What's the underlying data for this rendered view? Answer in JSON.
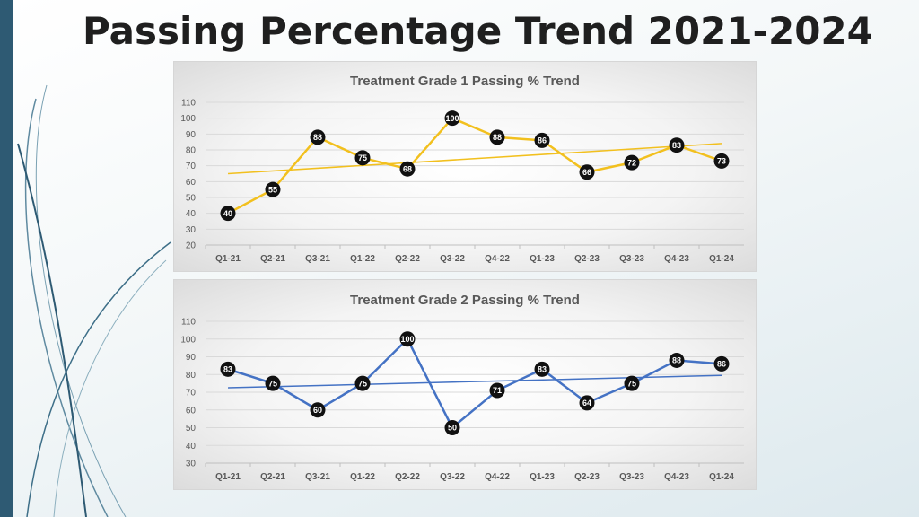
{
  "page": {
    "title": "Passing Percentage Trend 2021-2024"
  },
  "chart_data": [
    {
      "type": "line",
      "title": "Treatment Grade 1 Passing % Trend",
      "xlabel": "",
      "ylabel": "",
      "categories": [
        "Q1-21",
        "Q2-21",
        "Q3-21",
        "Q1-22",
        "Q2-22",
        "Q3-22",
        "Q4-22",
        "Q1-23",
        "Q2-23",
        "Q3-23",
        "Q4-23",
        "Q1-24"
      ],
      "values": [
        40,
        55,
        88,
        75,
        68,
        100,
        88,
        86,
        66,
        72,
        83,
        73
      ],
      "ylim": [
        20,
        110
      ],
      "yticks": [
        20,
        30,
        40,
        50,
        60,
        70,
        80,
        90,
        100,
        110
      ],
      "trendline": {
        "start": 65,
        "end": 84
      },
      "grid": true,
      "legend": "none",
      "colors": {
        "line": "#f2c01e",
        "trend": "#f2c01e",
        "marker": "#111111"
      }
    },
    {
      "type": "line",
      "title": "Treatment Grade 2 Passing % Trend",
      "xlabel": "",
      "ylabel": "",
      "categories": [
        "Q1-21",
        "Q2-21",
        "Q3-21",
        "Q1-22",
        "Q2-22",
        "Q3-22",
        "Q4-22",
        "Q1-23",
        "Q2-23",
        "Q3-23",
        "Q4-23",
        "Q1-24"
      ],
      "values": [
        83,
        75,
        60,
        75,
        100,
        50,
        71,
        83,
        64,
        75,
        88,
        86
      ],
      "ylim": [
        30,
        110
      ],
      "yticks": [
        30,
        40,
        50,
        60,
        70,
        80,
        90,
        100,
        110
      ],
      "trendline": {
        "start": 72.5,
        "end": 79.5
      },
      "grid": true,
      "legend": "none",
      "colors": {
        "line": "#4472c4",
        "trend": "#4472c4",
        "marker": "#111111"
      }
    }
  ]
}
